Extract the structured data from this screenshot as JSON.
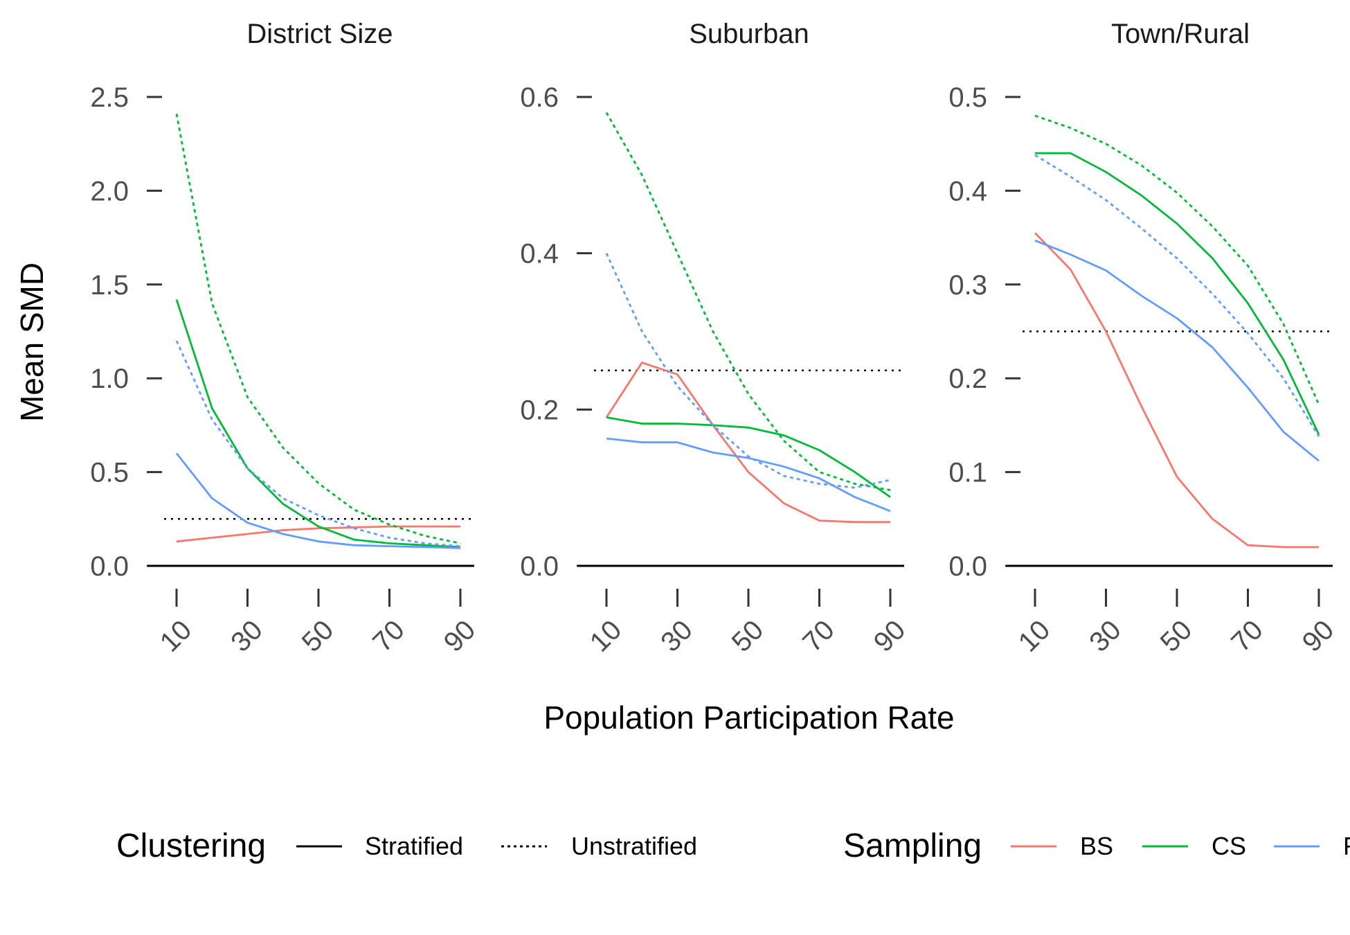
{
  "chart_data": {
    "type": "line",
    "xlabel": "Population Participation Rate",
    "ylabel": "Mean SMD",
    "x": [
      10,
      20,
      30,
      40,
      50,
      60,
      70,
      80,
      90
    ],
    "x_ticks": [
      10,
      30,
      50,
      70,
      90
    ],
    "x_ticks_text": [
      "10",
      "30",
      "50",
      "70",
      "90"
    ],
    "reference_line": {
      "y": 0.25,
      "style": "dotted",
      "color": "#000000"
    },
    "baseline": {
      "y": 0.0,
      "color": "#000000"
    },
    "grid": false,
    "legend": {
      "position": "bottom",
      "clustering_title": "Clustering",
      "clustering": [
        {
          "name": "Stratified",
          "linetype": "solid"
        },
        {
          "name": "Unstratified",
          "linetype": "dotted"
        }
      ],
      "sampling_title": "Sampling",
      "sampling": [
        {
          "name": "BS",
          "color": "#F8766D"
        },
        {
          "name": "CS",
          "color": "#00BA38"
        },
        {
          "name": "R",
          "color": "#619CFF"
        }
      ]
    },
    "panels": [
      {
        "title": "District Size",
        "ylim": [
          0,
          2.5
        ],
        "y_ticks": [
          0.0,
          0.5,
          1.0,
          1.5,
          2.0,
          2.5
        ],
        "y_ticks_text": [
          "0.0",
          "0.5",
          "1.0",
          "1.5",
          "2.0",
          "2.5"
        ],
        "series": [
          {
            "sampling": "BS",
            "clustering": "Stratified",
            "values": [
              0.13,
              0.15,
              0.17,
              0.19,
              0.2,
              0.205,
              0.21,
              0.21,
              0.21
            ]
          },
          {
            "sampling": "CS",
            "clustering": "Stratified",
            "values": [
              1.42,
              0.84,
              0.52,
              0.33,
              0.21,
              0.14,
              0.12,
              0.11,
              0.1
            ]
          },
          {
            "sampling": "R",
            "clustering": "Stratified",
            "values": [
              0.6,
              0.36,
              0.23,
              0.17,
              0.13,
              0.11,
              0.105,
              0.1,
              0.095
            ]
          },
          {
            "sampling": "CS",
            "clustering": "Unstratified",
            "values": [
              2.41,
              1.4,
              0.9,
              0.63,
              0.44,
              0.3,
              0.22,
              0.16,
              0.12
            ]
          },
          {
            "sampling": "R",
            "clustering": "Unstratified",
            "values": [
              1.2,
              0.78,
              0.52,
              0.36,
              0.27,
              0.2,
              0.15,
              0.12,
              0.105
            ]
          }
        ]
      },
      {
        "title": "Suburban",
        "ylim": [
          0,
          0.6
        ],
        "y_ticks": [
          0.0,
          0.2,
          0.4,
          0.6
        ],
        "y_ticks_text": [
          "0.0",
          "0.2",
          "0.4",
          "0.6"
        ],
        "series": [
          {
            "sampling": "BS",
            "clustering": "Stratified",
            "values": [
              0.19,
              0.26,
              0.245,
              0.18,
              0.12,
              0.08,
              0.058,
              0.056,
              0.056
            ]
          },
          {
            "sampling": "CS",
            "clustering": "Stratified",
            "values": [
              0.19,
              0.182,
              0.182,
              0.18,
              0.177,
              0.167,
              0.148,
              0.12,
              0.088
            ]
          },
          {
            "sampling": "R",
            "clustering": "Stratified",
            "values": [
              0.163,
              0.158,
              0.158,
              0.145,
              0.138,
              0.127,
              0.112,
              0.088,
              0.07
            ]
          },
          {
            "sampling": "CS",
            "clustering": "Unstratified",
            "values": [
              0.58,
              0.5,
              0.4,
              0.3,
              0.22,
              0.16,
              0.12,
              0.105,
              0.097
            ]
          },
          {
            "sampling": "R",
            "clustering": "Unstratified",
            "values": [
              0.4,
              0.3,
              0.23,
              0.18,
              0.14,
              0.115,
              0.105,
              0.1,
              0.11
            ]
          }
        ]
      },
      {
        "title": "Town/Rural",
        "ylim": [
          0,
          0.5
        ],
        "y_ticks": [
          0.0,
          0.1,
          0.2,
          0.3,
          0.4,
          0.5
        ],
        "y_ticks_text": [
          "0.0",
          "0.1",
          "0.2",
          "0.3",
          "0.4",
          "0.5"
        ],
        "series": [
          {
            "sampling": "BS",
            "clustering": "Stratified",
            "values": [
              0.355,
              0.316,
              0.25,
              0.17,
              0.095,
              0.05,
              0.022,
              0.02,
              0.02
            ]
          },
          {
            "sampling": "CS",
            "clustering": "Stratified",
            "values": [
              0.44,
              0.44,
              0.42,
              0.395,
              0.365,
              0.328,
              0.28,
              0.22,
              0.14
            ]
          },
          {
            "sampling": "R",
            "clustering": "Stratified",
            "values": [
              0.347,
              0.332,
              0.315,
              0.288,
              0.264,
              0.233,
              0.19,
              0.143,
              0.112
            ]
          },
          {
            "sampling": "CS",
            "clustering": "Unstratified",
            "values": [
              0.48,
              0.467,
              0.45,
              0.427,
              0.398,
              0.362,
              0.32,
              0.258,
              0.172
            ]
          },
          {
            "sampling": "R",
            "clustering": "Unstratified",
            "values": [
              0.438,
              0.415,
              0.39,
              0.36,
              0.328,
              0.29,
              0.248,
              0.2,
              0.138
            ]
          }
        ]
      }
    ]
  }
}
